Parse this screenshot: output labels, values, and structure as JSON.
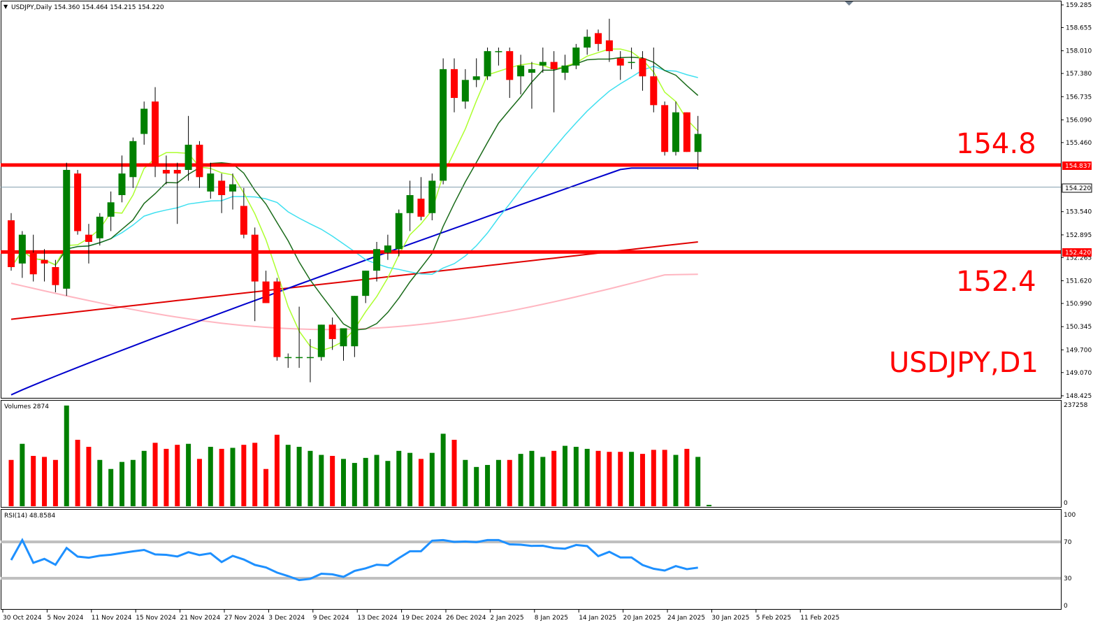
{
  "chart_data": {
    "type": "candlestick",
    "header": "USDJPY,Daily  154.360 154.464 154.215 154.220",
    "symbol": "USDJPY",
    "timeframe": "Daily",
    "ohlc_header": {
      "open": 154.36,
      "high": 154.464,
      "low": 154.215,
      "close": 154.22
    },
    "price_ticks": [
      "159.285",
      "158.655",
      "158.010",
      "157.380",
      "156.735",
      "156.090",
      "155.460",
      "154.815",
      "154.220",
      "153.540",
      "152.895",
      "152.420",
      "152.265",
      "151.620",
      "150.990",
      "150.345",
      "149.700",
      "149.070",
      "148.425"
    ],
    "price_tick_values": [
      159.285,
      158.655,
      158.01,
      157.38,
      156.735,
      156.09,
      155.46,
      154.815,
      154.22,
      153.54,
      152.895,
      152.42,
      152.265,
      151.62,
      150.99,
      150.345,
      149.7,
      149.07,
      148.425
    ],
    "price_range": [
      148.4,
      159.4
    ],
    "date_ticks": [
      "30 Oct 2024",
      "5 Nov 2024",
      "11 Nov 2024",
      "15 Nov 2024",
      "21 Nov 2024",
      "27 Nov 2024",
      "3 Dec 2024",
      "9 Dec 2024",
      "13 Dec 2024",
      "19 Dec 2024",
      "26 Dec 2024",
      "2 Jan 2025",
      "8 Jan 2025",
      "14 Jan 2025",
      "20 Jan 2025",
      "24 Jan 2025",
      "30 Jan 2025",
      "5 Feb 2025",
      "11 Feb 2025"
    ],
    "date_tick_index": [
      0,
      4,
      8,
      12,
      16,
      20,
      24,
      28,
      32,
      36,
      40,
      44,
      48,
      52,
      56,
      60,
      64,
      68,
      72
    ],
    "candles": [
      [
        153.3,
        153.5,
        151.9,
        152.0
      ],
      [
        152.1,
        153.0,
        151.7,
        152.9
      ],
      [
        152.4,
        152.9,
        151.6,
        151.8
      ],
      [
        152.2,
        152.5,
        151.6,
        152.1
      ],
      [
        152.0,
        152.2,
        151.3,
        151.5
      ],
      [
        151.4,
        154.9,
        151.2,
        154.7
      ],
      [
        154.6,
        154.7,
        152.9,
        153.0
      ],
      [
        152.9,
        153.2,
        152.1,
        152.7
      ],
      [
        152.8,
        153.5,
        152.6,
        153.4
      ],
      [
        153.4,
        154.1,
        153.0,
        153.8
      ],
      [
        154.0,
        155.1,
        153.8,
        154.6
      ],
      [
        154.5,
        155.6,
        154.2,
        155.5
      ],
      [
        155.7,
        156.6,
        155.4,
        156.4
      ],
      [
        156.6,
        157.0,
        154.5,
        154.8
      ],
      [
        154.7,
        155.1,
        154.3,
        154.6
      ],
      [
        154.7,
        154.9,
        153.2,
        154.6
      ],
      [
        154.7,
        156.2,
        154.4,
        155.4
      ],
      [
        155.4,
        155.5,
        154.2,
        154.5
      ],
      [
        154.1,
        154.9,
        153.9,
        154.6
      ],
      [
        154.4,
        154.6,
        153.5,
        154.0
      ],
      [
        154.1,
        154.6,
        153.6,
        154.3
      ],
      [
        153.7,
        154.2,
        152.8,
        152.9
      ],
      [
        152.9,
        153.1,
        151.5,
        151.6
      ],
      [
        151.5,
        151.6,
        150.9,
        151.1
      ],
      [
        151.6,
        152.2,
        149.4,
        149.5
      ],
      [
        149.5,
        151.4,
        149.2,
        149.6
      ],
      [
        149.6,
        150.0,
        149.1,
        149.5
      ],
      [
        149.5,
        151.2,
        149.3,
        150.9
      ],
      [
        150.9,
        151.2,
        150.2,
        150.5
      ],
      [
        150.0,
        151.3,
        149.7,
        151.2
      ],
      [
        151.2,
        152.1,
        150.7,
        151.9
      ],
      [
        151.9,
        152.7,
        151.6,
        152.5
      ],
      [
        152.4,
        152.9,
        152.1,
        152.6
      ],
      [
        152.5,
        153.6,
        152.3,
        153.5
      ],
      [
        153.5,
        154.3,
        153.0,
        154.0
      ],
      [
        153.9,
        154.5,
        153.2,
        153.6
      ],
      [
        153.5,
        154.6,
        153.3,
        154.4
      ],
      [
        154.4,
        157.8,
        154.3,
        157.5
      ],
      [
        157.5,
        157.8,
        156.3,
        156.7
      ],
      [
        156.6,
        157.5,
        156.4,
        157.2
      ],
      [
        157.2,
        157.8,
        157.0,
        157.3
      ],
      [
        157.3,
        158.1,
        157.2,
        158.0
      ],
      [
        158.0,
        158.1,
        157.6,
        158.0
      ],
      [
        158.0,
        158.1,
        156.7,
        157.2
      ],
      [
        157.3,
        157.9,
        156.8,
        157.6
      ],
      [
        157.4,
        157.7,
        156.4,
        157.5
      ],
      [
        157.6,
        158.1,
        157.4,
        157.7
      ],
      [
        157.7,
        158.0,
        156.3,
        157.5
      ],
      [
        157.4,
        157.9,
        157.2,
        157.6
      ],
      [
        157.6,
        158.2,
        157.5,
        158.1
      ],
      [
        158.1,
        158.6,
        157.9,
        158.4
      ],
      [
        158.5,
        158.6,
        158.0,
        158.2
      ],
      [
        158.3,
        158.9,
        157.7,
        158.0
      ],
      [
        157.8,
        157.9,
        157.2,
        157.6
      ],
      [
        157.7,
        158.1,
        157.5,
        157.7
      ],
      [
        157.8,
        158.0,
        156.9,
        157.3
      ],
      [
        157.3,
        158.1,
        156.3,
        156.5
      ],
      [
        156.5,
        156.6,
        155.1,
        155.2
      ],
      [
        155.2,
        156.6,
        155.1,
        156.3
      ],
      [
        156.3,
        156.3,
        155.2,
        155.2
      ],
      [
        155.2,
        156.2,
        154.7,
        155.7
      ],
      [
        155.6,
        155.7,
        155.4,
        155.5
      ],
      [
        155.5,
        156.7,
        155.2,
        156.6
      ],
      [
        156.6,
        156.8,
        155.6,
        155.9
      ],
      [
        156.0,
        156.4,
        155.3,
        156.0
      ],
      [
        155.9,
        156.2,
        154.9,
        155.8
      ],
      [
        155.8,
        155.9,
        153.7,
        154.5
      ],
      [
        154.5,
        155.5,
        154.3,
        155.5
      ],
      [
        155.5,
        155.9,
        154.3,
        154.5
      ],
      [
        154.6,
        155.4,
        154.4,
        155.3
      ],
      [
        155.3,
        155.4,
        153.8,
        154.0
      ],
      [
        154.0,
        155.3,
        153.8,
        155.1
      ],
      [
        155.1,
        155.2,
        154.0,
        154.2
      ],
      [
        154.1,
        155.2,
        154.0,
        155.0
      ],
      [
        155.0,
        155.5,
        154.1,
        154.3
      ],
      [
        154.3,
        155.9,
        154.1,
        154.3
      ]
    ],
    "visible_candles": [
      [
        153.3,
        153.5,
        151.9,
        152.0
      ],
      [
        152.1,
        153.0,
        151.7,
        152.9
      ],
      [
        152.4,
        152.9,
        151.6,
        151.8
      ],
      [
        152.2,
        152.5,
        151.6,
        152.1
      ],
      [
        152.0,
        152.2,
        151.3,
        151.5
      ],
      [
        151.4,
        154.9,
        151.2,
        154.7
      ],
      [
        154.6,
        154.7,
        152.9,
        153.0
      ],
      [
        152.9,
        153.2,
        152.1,
        152.7
      ],
      [
        152.8,
        153.5,
        152.6,
        153.4
      ],
      [
        153.4,
        154.1,
        153.0,
        153.8
      ],
      [
        154.0,
        155.1,
        153.8,
        154.6
      ],
      [
        154.5,
        155.6,
        154.2,
        155.5
      ],
      [
        155.7,
        156.6,
        155.4,
        156.4
      ],
      [
        156.6,
        157.0,
        154.5,
        154.8
      ],
      [
        154.7,
        155.1,
        154.3,
        154.6
      ],
      [
        154.7,
        154.9,
        153.2,
        154.6
      ],
      [
        154.7,
        156.2,
        154.4,
        155.4
      ],
      [
        155.4,
        155.5,
        154.2,
        154.5
      ],
      [
        154.1,
        154.9,
        153.9,
        154.6
      ],
      [
        154.4,
        154.6,
        153.5,
        154.0
      ],
      [
        154.1,
        154.6,
        153.6,
        154.3
      ],
      [
        153.7,
        154.2,
        152.8,
        152.9
      ],
      [
        152.9,
        153.1,
        150.5,
        151.6
      ],
      [
        151.6,
        151.9,
        151.0,
        151.0
      ],
      [
        151.6,
        151.7,
        149.4,
        149.5
      ],
      [
        149.5,
        149.6,
        149.2,
        149.5
      ],
      [
        149.5,
        150.9,
        149.2,
        149.5
      ],
      [
        149.5,
        150.0,
        148.8,
        149.5
      ],
      [
        149.5,
        150.4,
        149.4,
        150.4
      ],
      [
        150.4,
        150.6,
        149.7,
        150.0
      ],
      [
        149.8,
        150.3,
        149.4,
        150.3
      ],
      [
        149.8,
        151.2,
        149.5,
        151.2
      ],
      [
        151.2,
        151.9,
        151.0,
        151.9
      ],
      [
        151.9,
        152.7,
        151.6,
        152.5
      ],
      [
        152.4,
        152.9,
        152.2,
        152.6
      ],
      [
        152.5,
        153.6,
        152.3,
        153.5
      ],
      [
        153.5,
        154.4,
        153.0,
        154.0
      ],
      [
        153.9,
        154.5,
        153.3,
        153.4
      ],
      [
        153.5,
        154.6,
        153.3,
        154.4
      ],
      [
        154.4,
        157.8,
        154.3,
        157.5
      ],
      [
        157.5,
        157.8,
        156.3,
        156.7
      ],
      [
        156.6,
        157.5,
        156.4,
        157.2
      ],
      [
        157.2,
        157.8,
        157.0,
        157.3
      ],
      [
        157.3,
        158.1,
        157.2,
        158.0
      ],
      [
        158.0,
        158.1,
        157.6,
        158.0
      ],
      [
        158.0,
        158.1,
        156.7,
        157.2
      ],
      [
        157.3,
        157.9,
        156.8,
        157.6
      ],
      [
        157.4,
        157.7,
        156.4,
        157.5
      ],
      [
        157.6,
        158.1,
        157.4,
        157.7
      ],
      [
        157.7,
        158.0,
        156.3,
        157.5
      ],
      [
        157.4,
        157.9,
        157.2,
        157.6
      ],
      [
        157.6,
        158.2,
        157.5,
        158.1
      ],
      [
        158.1,
        158.6,
        157.9,
        158.4
      ],
      [
        158.5,
        158.6,
        158.0,
        158.2
      ],
      [
        158.3,
        158.9,
        157.7,
        158.0
      ],
      [
        157.8,
        158.0,
        157.2,
        157.6
      ],
      [
        157.7,
        158.1,
        157.5,
        157.7
      ],
      [
        157.8,
        158.0,
        156.9,
        157.3
      ],
      [
        157.3,
        158.1,
        156.3,
        156.5
      ],
      [
        156.5,
        156.6,
        155.1,
        155.2
      ],
      [
        155.2,
        156.6,
        155.1,
        156.3
      ],
      [
        156.3,
        156.3,
        155.2,
        155.2
      ],
      [
        155.2,
        156.2,
        154.7,
        155.7
      ]
    ],
    "series_overlays": [
      {
        "name": "MA fast",
        "color": "#adff2f"
      },
      {
        "name": "MA medium",
        "color": "#1a6b1a"
      },
      {
        "name": "MA slow",
        "color": "#40e0f0"
      },
      {
        "name": "MA 100",
        "color": "#0000cd"
      },
      {
        "name": "MA 200",
        "color": "#e00000"
      },
      {
        "name": "MA 300",
        "color": "#ffb6c1"
      }
    ],
    "horizontal_lines": [
      {
        "price": 154.837,
        "label": "154.837",
        "annotation": "154.8",
        "color": "#ff0000"
      },
      {
        "price": 152.42,
        "label": "152.420",
        "annotation": "152.4",
        "color": "#ff0000"
      }
    ],
    "current_price_label": "154.220",
    "current_price": 154.22,
    "watermark": "USDJPY,D1",
    "volume": {
      "label": "Volumes 2874",
      "max_label": "237258",
      "zero_label": "0",
      "max_value": 237258
    },
    "rsi": {
      "label": "RSI(14) 48.8584",
      "levels": [
        70,
        30
      ],
      "axis_labels": [
        "100",
        "70",
        "30",
        "0"
      ]
    }
  },
  "colors": {
    "bull": "#008000",
    "bear": "#ff0000",
    "grid_line": "#c0c0c0",
    "rsi_line": "#1e90ff",
    "current_price_line": "#7090a0"
  }
}
